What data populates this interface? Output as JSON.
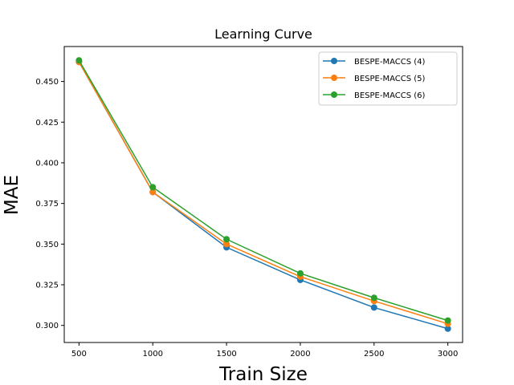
{
  "chart_data": {
    "type": "line",
    "title": "Learning Curve",
    "xlabel": "Train Size",
    "ylabel": "MAE",
    "x": [
      500,
      1000,
      1500,
      2000,
      2500,
      3000
    ],
    "xlim": [
      400,
      3100
    ],
    "ylim": [
      0.2895,
      0.4715
    ],
    "xticks": [
      500,
      1000,
      1500,
      2000,
      2500,
      3000
    ],
    "yticks": [
      0.3,
      0.325,
      0.35,
      0.375,
      0.4,
      0.425,
      0.45
    ],
    "ytick_labels": [
      "0.300",
      "0.325",
      "0.350",
      "0.375",
      "0.400",
      "0.425",
      "0.450"
    ],
    "grid": false,
    "legend_position": "upper right",
    "series": [
      {
        "name": "BESPE-MACCS (4)",
        "color": "#1f77b4",
        "values": [
          0.462,
          0.382,
          0.348,
          0.328,
          0.311,
          0.298
        ]
      },
      {
        "name": "BESPE-MACCS (5)",
        "color": "#ff7f0e",
        "values": [
          0.462,
          0.382,
          0.35,
          0.33,
          0.315,
          0.301
        ]
      },
      {
        "name": "BESPE-MACCS (6)",
        "color": "#2ca02c",
        "values": [
          0.463,
          0.385,
          0.353,
          0.332,
          0.317,
          0.303
        ]
      }
    ]
  }
}
